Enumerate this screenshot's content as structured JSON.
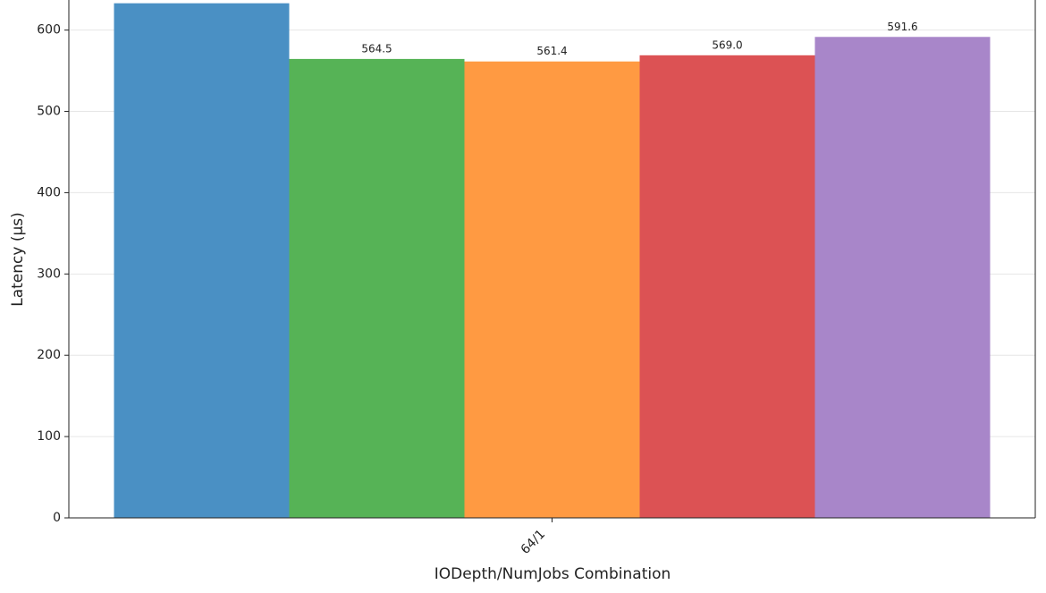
{
  "chart_data": {
    "type": "bar",
    "xlabel": "IODepth/NumJobs Combination",
    "ylabel": "Latency (µs)",
    "categories": [
      "64/1"
    ],
    "series": [
      {
        "color": "#4a90c4",
        "values": [
          633
        ]
      },
      {
        "color": "#56b356",
        "values": [
          564.5
        ]
      },
      {
        "color": "#ff9a42",
        "values": [
          561.4
        ]
      },
      {
        "color": "#dc5254",
        "values": [
          569
        ],
        "value_labels": [
          "569.0"
        ]
      },
      {
        "color": "#a886c9",
        "values": [
          591.6
        ]
      }
    ],
    "ylim": [
      0,
      637
    ],
    "yticks": [
      0,
      100,
      200,
      300,
      400,
      500,
      600
    ],
    "grid": true
  }
}
